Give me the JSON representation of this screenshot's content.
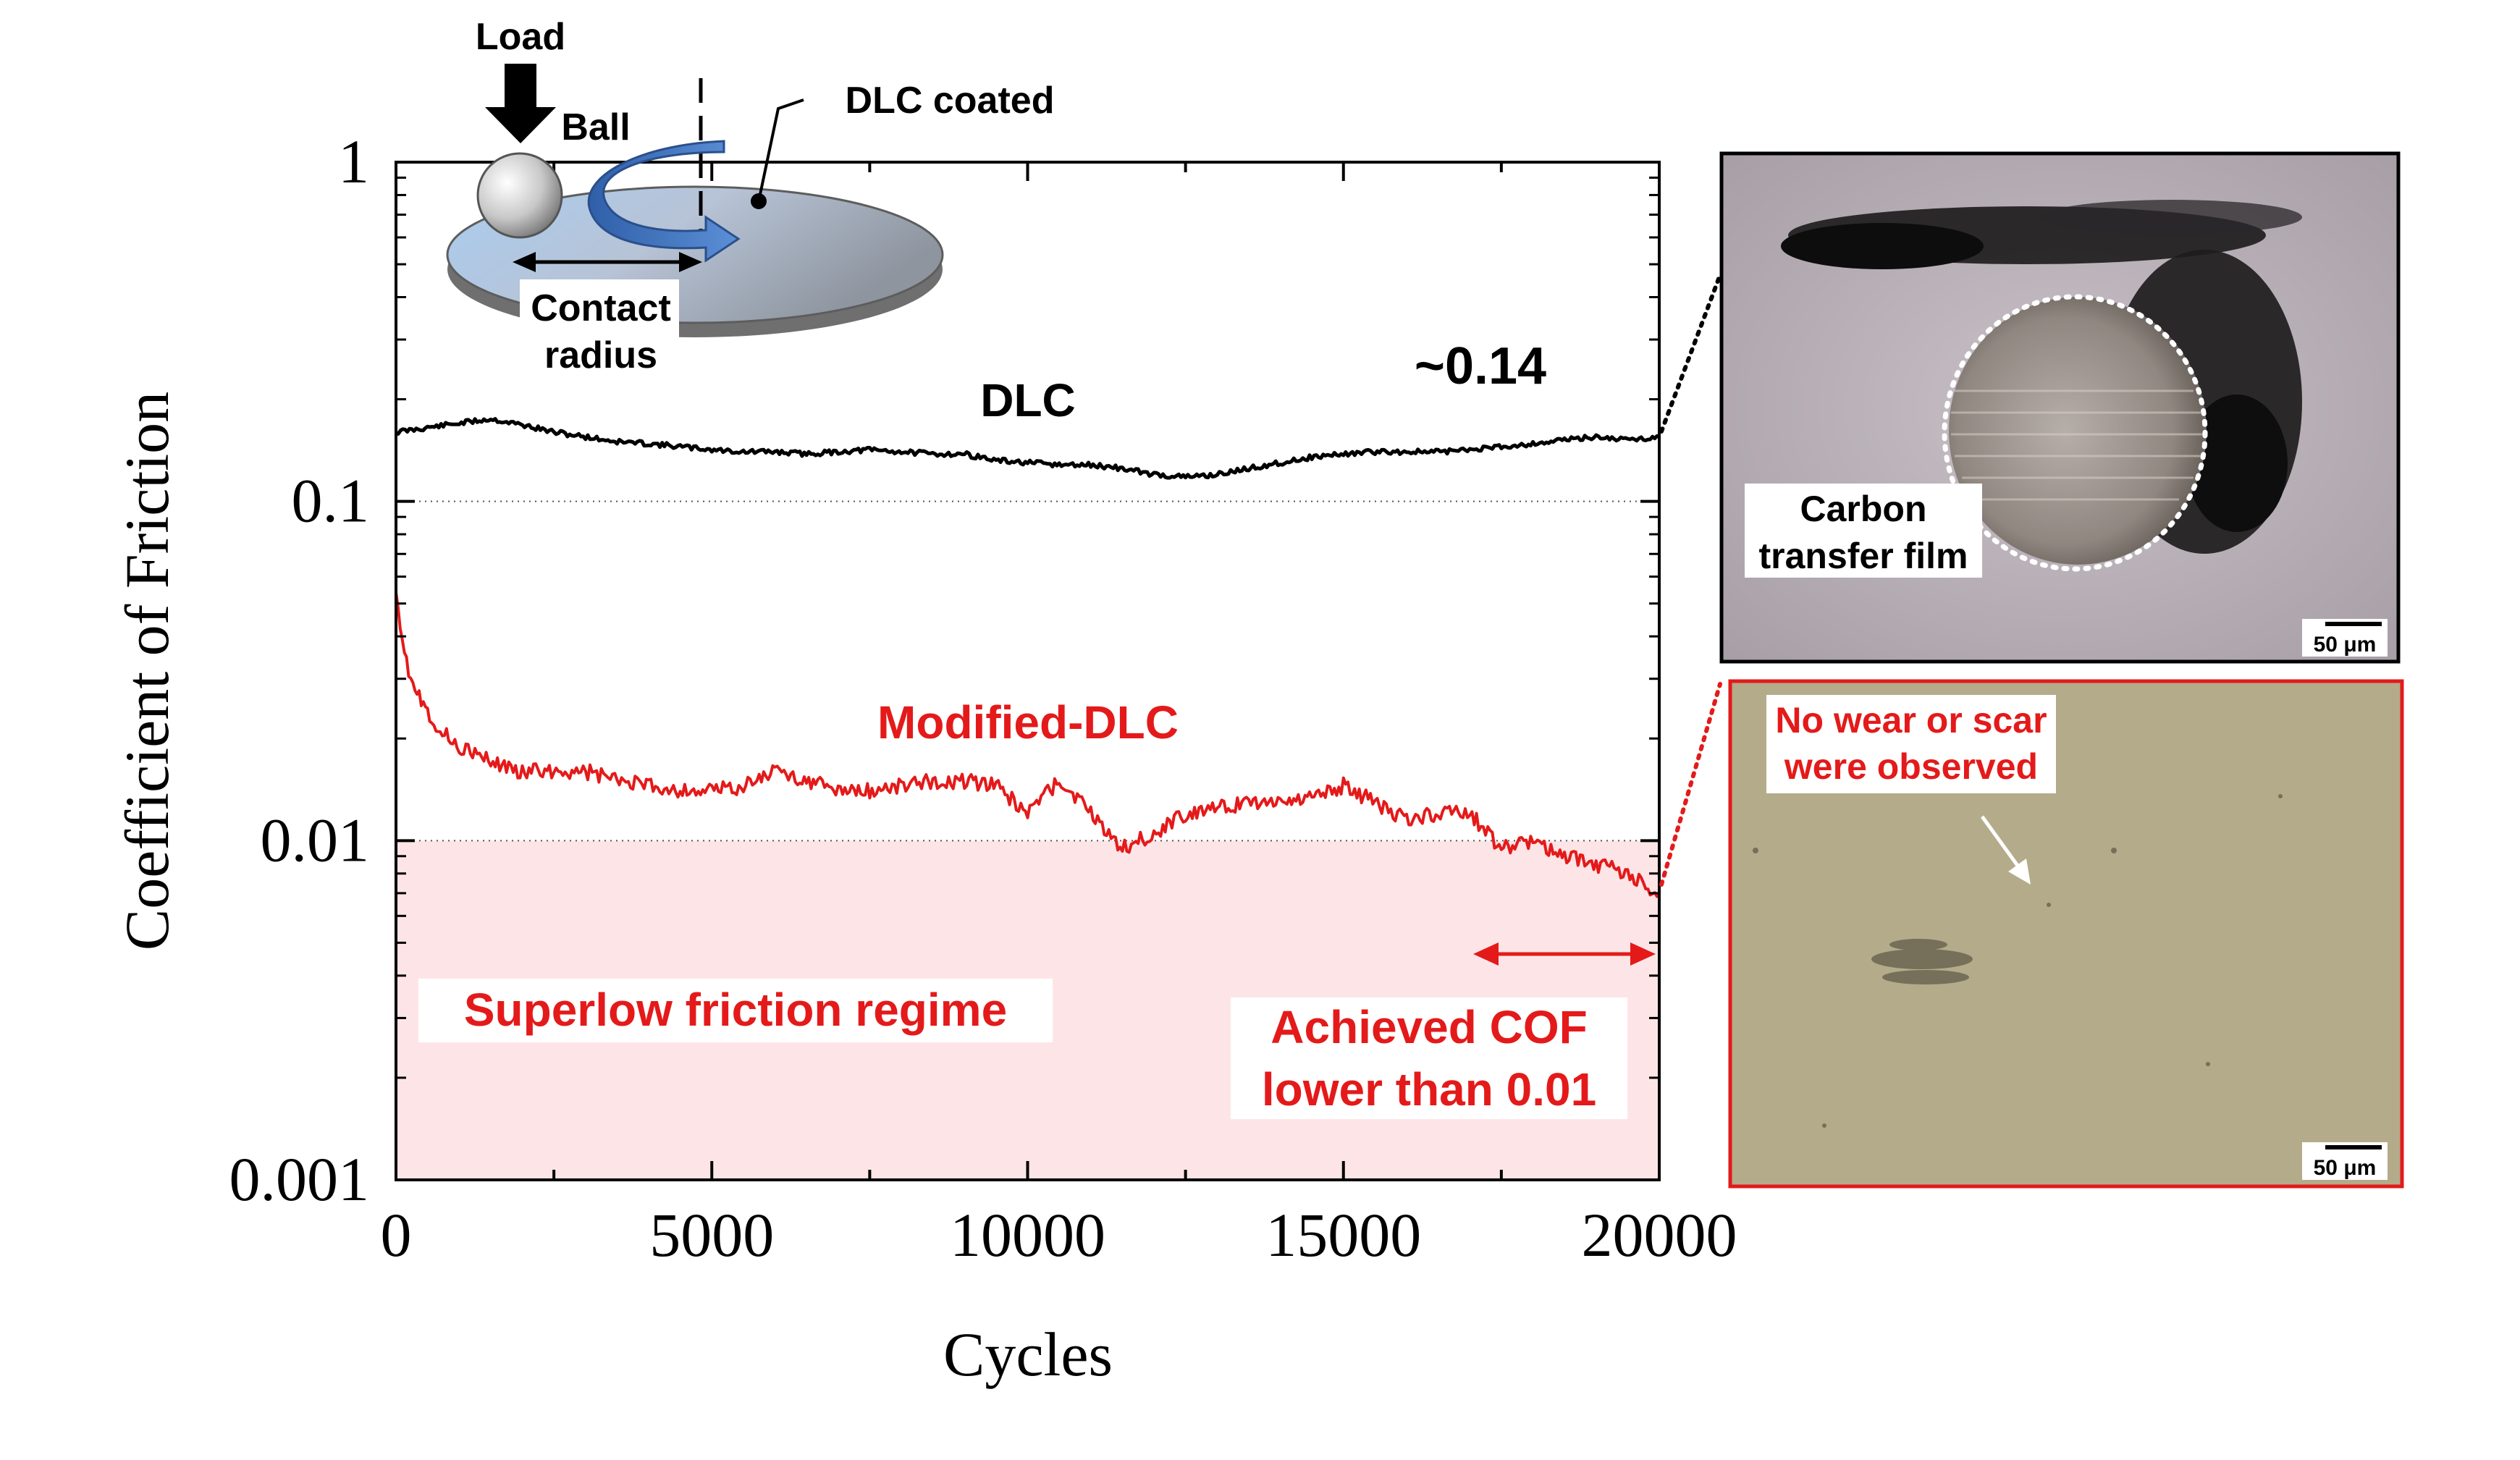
{
  "colors": {
    "dlc": "#000000",
    "modified": "#e41a1a",
    "regime_fill": "#fde5e7",
    "red_text": "#e41a1a"
  },
  "chart_data": {
    "type": "line",
    "xlabel": "Cycles",
    "ylabel": "Coefficient of Friction",
    "xlim": [
      0,
      20000
    ],
    "ylim": [
      0.001,
      1
    ],
    "y_scale": "log",
    "x_ticks": [
      0,
      5000,
      10000,
      15000,
      20000
    ],
    "x_tick_labels": [
      "0",
      "5000",
      "10000",
      "15000",
      "20000"
    ],
    "y_ticks": [
      0.001,
      0.01,
      0.1,
      1
    ],
    "y_tick_labels": [
      "0.001",
      "0.01",
      "0.1",
      "1"
    ],
    "grid": "dotted horizontal lines at 0.01 and 0.1",
    "series": [
      {
        "name": "DLC",
        "color": "#000000",
        "x": [
          0,
          500,
          1000,
          1500,
          2000,
          2500,
          3000,
          3500,
          4000,
          4500,
          5000,
          5500,
          6000,
          6500,
          7000,
          7500,
          8000,
          8500,
          9000,
          9500,
          10000,
          10500,
          11000,
          11500,
          12000,
          12500,
          13000,
          13500,
          14000,
          14500,
          15000,
          15500,
          16000,
          16500,
          17000,
          17500,
          18000,
          18500,
          19000,
          19500,
          20000
        ],
        "y": [
          0.16,
          0.165,
          0.17,
          0.175,
          0.168,
          0.16,
          0.155,
          0.15,
          0.148,
          0.145,
          0.142,
          0.14,
          0.14,
          0.138,
          0.14,
          0.142,
          0.14,
          0.138,
          0.138,
          0.132,
          0.13,
          0.128,
          0.128,
          0.125,
          0.12,
          0.118,
          0.12,
          0.125,
          0.13,
          0.135,
          0.138,
          0.14,
          0.14,
          0.14,
          0.142,
          0.145,
          0.148,
          0.152,
          0.155,
          0.152,
          0.155
        ]
      },
      {
        "name": "Modified-DLC",
        "color": "#e41a1a",
        "x": [
          0,
          100,
          200,
          400,
          700,
          1000,
          1500,
          2000,
          2500,
          3000,
          3500,
          4000,
          4500,
          5000,
          5500,
          6000,
          6500,
          7000,
          7500,
          8000,
          8500,
          9000,
          9500,
          10000,
          10500,
          11000,
          11500,
          12000,
          12500,
          13000,
          13500,
          14000,
          14500,
          15000,
          15500,
          16000,
          16500,
          17000,
          17500,
          18000,
          18500,
          19000,
          19500,
          20000
        ],
        "y": [
          0.055,
          0.04,
          0.032,
          0.026,
          0.021,
          0.019,
          0.017,
          0.016,
          0.016,
          0.016,
          0.015,
          0.0145,
          0.014,
          0.014,
          0.0145,
          0.016,
          0.015,
          0.014,
          0.014,
          0.0145,
          0.015,
          0.015,
          0.0145,
          0.012,
          0.015,
          0.012,
          0.0095,
          0.0105,
          0.012,
          0.0125,
          0.013,
          0.013,
          0.0135,
          0.0145,
          0.013,
          0.0115,
          0.012,
          0.012,
          0.0095,
          0.01,
          0.009,
          0.0085,
          0.008,
          0.007
        ]
      }
    ]
  },
  "annotations": {
    "dlc_label": "DLC",
    "dlc_value": "~0.14",
    "modified_label": "Modified-DLC",
    "regime_label": "Superlow friction regime",
    "achieved_line1": "Achieved COF",
    "achieved_line2": "lower than 0.01"
  },
  "schematic": {
    "load": "Load",
    "ball": "Ball",
    "coated": "DLC coated",
    "contact_line1": "Contact",
    "contact_line2": "radius"
  },
  "micrographs": {
    "top": {
      "label_line1": "Carbon",
      "label_line2": "transfer film",
      "scale": "50 μm"
    },
    "bottom": {
      "label_line1": "No wear or scar",
      "label_line2": "were observed",
      "scale": "50 μm"
    }
  }
}
